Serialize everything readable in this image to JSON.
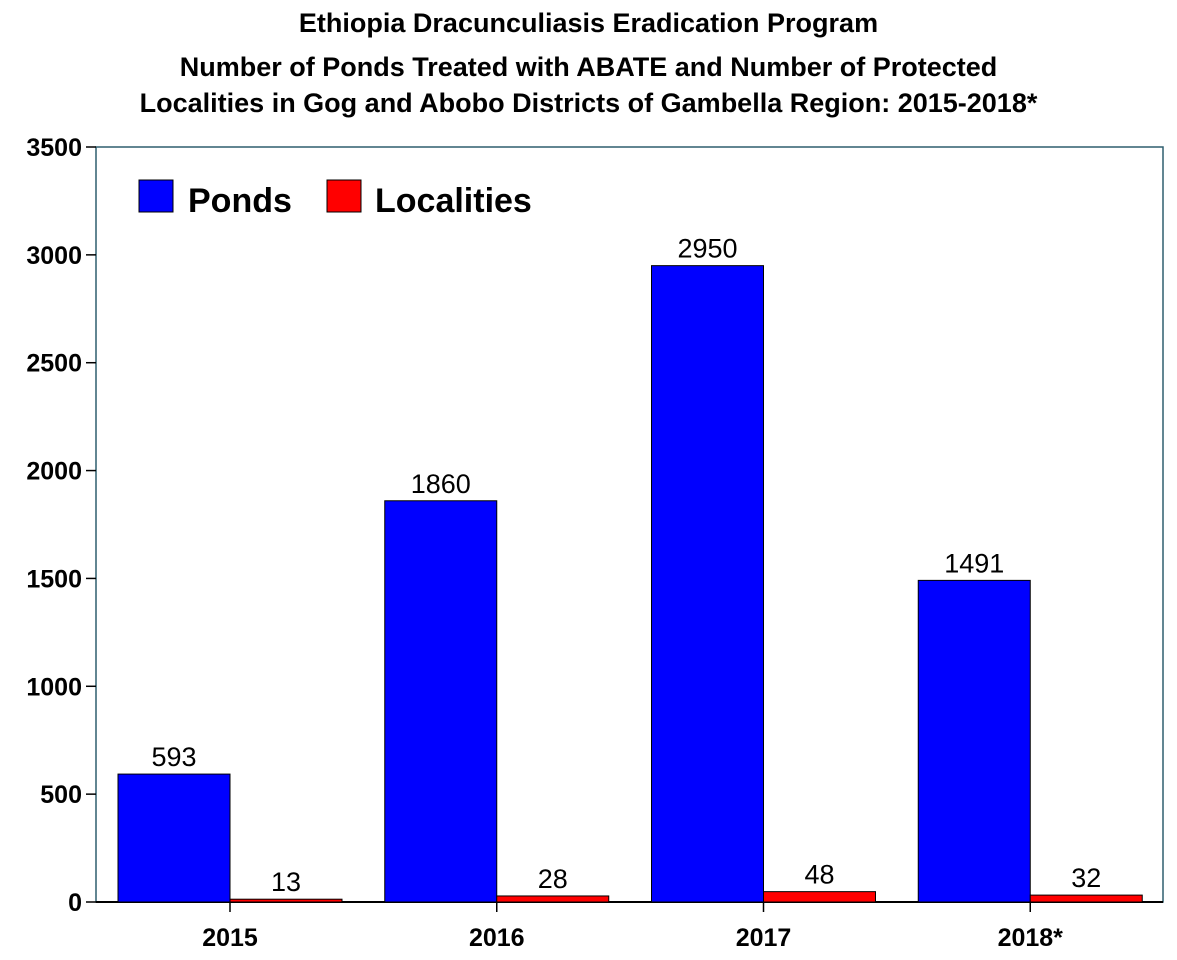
{
  "chart_data": {
    "type": "bar",
    "title_lines": [
      "Ethiopia Dracunculiasis Eradication Program",
      "Number of Ponds Treated with ABATE and Number of Protected",
      "Localities in Gog and Abobo Districts of Gambella Region: 2015-2018*"
    ],
    "categories": [
      "2015",
      "2016",
      "2017",
      "2018*"
    ],
    "series": [
      {
        "name": "Ponds",
        "color": "#0000ff",
        "values": [
          593,
          1860,
          2950,
          1491
        ],
        "labels": [
          "593",
          "1860",
          "2950",
          "1491"
        ]
      },
      {
        "name": "Localities",
        "color": "#ff0000",
        "values": [
          13,
          28,
          48,
          32
        ],
        "labels": [
          "13",
          "28",
          "48",
          "32"
        ]
      }
    ],
    "ylim": [
      0,
      3500
    ],
    "yticks": [
      0,
      500,
      1000,
      1500,
      2000,
      2500,
      3000,
      3500
    ],
    "ytick_labels": [
      "0",
      "500",
      "1000",
      "1500",
      "2000",
      "2500",
      "3000",
      "3500"
    ],
    "grid": false,
    "legend_position": "top-left",
    "frame_color": "#2f5f6f"
  }
}
